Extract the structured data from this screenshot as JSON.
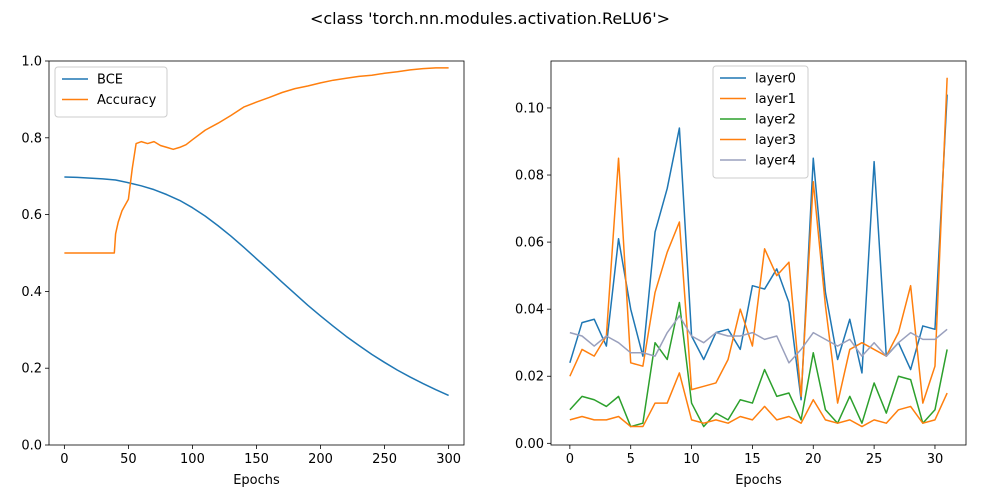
{
  "figure": {
    "title": "<class 'torch.nn.modules.activation.ReLU6'>"
  },
  "chart_data": [
    {
      "type": "line",
      "title": "",
      "xlabel": "Epochs",
      "ylabel": "",
      "xlim": [
        -12,
        312
      ],
      "ylim": [
        0.0,
        1.0
      ],
      "xticks": [
        0,
        50,
        100,
        150,
        200,
        250,
        300
      ],
      "xtick_labels": [
        "0",
        "50",
        "100",
        "150",
        "200",
        "250",
        "300"
      ],
      "yticks": [
        0.0,
        0.2,
        0.4,
        0.6,
        0.8,
        1.0
      ],
      "ytick_labels": [
        "0.0",
        "0.2",
        "0.4",
        "0.6",
        "0.8",
        "1.0"
      ],
      "grid": false,
      "legend": "top-left",
      "series": [
        {
          "name": "BCE",
          "color": "#1f77b4",
          "points": [
            [
              0,
              0.698
            ],
            [
              10,
              0.697
            ],
            [
              20,
              0.695
            ],
            [
              30,
              0.693
            ],
            [
              40,
              0.69
            ],
            [
              50,
              0.683
            ],
            [
              60,
              0.675
            ],
            [
              70,
              0.665
            ],
            [
              80,
              0.652
            ],
            [
              90,
              0.637
            ],
            [
              100,
              0.618
            ],
            [
              110,
              0.596
            ],
            [
              120,
              0.571
            ],
            [
              130,
              0.544
            ],
            [
              140,
              0.515
            ],
            [
              150,
              0.485
            ],
            [
              160,
              0.455
            ],
            [
              170,
              0.424
            ],
            [
              180,
              0.394
            ],
            [
              190,
              0.364
            ],
            [
              200,
              0.336
            ],
            [
              210,
              0.309
            ],
            [
              220,
              0.283
            ],
            [
              230,
              0.259
            ],
            [
              240,
              0.236
            ],
            [
              250,
              0.215
            ],
            [
              260,
              0.195
            ],
            [
              270,
              0.177
            ],
            [
              280,
              0.16
            ],
            [
              290,
              0.144
            ],
            [
              300,
              0.129
            ]
          ]
        },
        {
          "name": "Accuracy",
          "color": "#ff7f0e",
          "points": [
            [
              0,
              0.5
            ],
            [
              39,
              0.5
            ],
            [
              40,
              0.55
            ],
            [
              42,
              0.58
            ],
            [
              45,
              0.61
            ],
            [
              50,
              0.64
            ],
            [
              53,
              0.72
            ],
            [
              56,
              0.785
            ],
            [
              60,
              0.79
            ],
            [
              65,
              0.785
            ],
            [
              70,
              0.79
            ],
            [
              75,
              0.78
            ],
            [
              80,
              0.775
            ],
            [
              85,
              0.77
            ],
            [
              90,
              0.775
            ],
            [
              95,
              0.782
            ],
            [
              100,
              0.795
            ],
            [
              110,
              0.82
            ],
            [
              120,
              0.838
            ],
            [
              130,
              0.858
            ],
            [
              140,
              0.88
            ],
            [
              150,
              0.893
            ],
            [
              160,
              0.905
            ],
            [
              170,
              0.918
            ],
            [
              180,
              0.928
            ],
            [
              190,
              0.935
            ],
            [
              200,
              0.943
            ],
            [
              210,
              0.95
            ],
            [
              220,
              0.955
            ],
            [
              230,
              0.96
            ],
            [
              240,
              0.963
            ],
            [
              250,
              0.968
            ],
            [
              260,
              0.972
            ],
            [
              270,
              0.977
            ],
            [
              280,
              0.98
            ],
            [
              290,
              0.982
            ],
            [
              300,
              0.982
            ]
          ]
        }
      ]
    },
    {
      "type": "line",
      "title": "",
      "xlabel": "Epochs",
      "ylabel": "",
      "xlim": [
        -1.55,
        32.55
      ],
      "ylim": [
        -0.0005,
        0.114
      ],
      "xticks": [
        0,
        5,
        10,
        15,
        20,
        25,
        30
      ],
      "xtick_labels": [
        "0",
        "5",
        "10",
        "15",
        "20",
        "25",
        "30"
      ],
      "yticks": [
        0.0,
        0.02,
        0.04,
        0.06,
        0.08,
        0.1
      ],
      "ytick_labels": [
        "0.00",
        "0.02",
        "0.04",
        "0.06",
        "0.08",
        "0.10"
      ],
      "grid": false,
      "legend": "top-center",
      "x": [
        0,
        1,
        2,
        3,
        4,
        5,
        6,
        7,
        8,
        9,
        10,
        11,
        12,
        13,
        14,
        15,
        16,
        17,
        18,
        19,
        20,
        21,
        22,
        23,
        24,
        25,
        26,
        27,
        28,
        29,
        30,
        31
      ],
      "series": [
        {
          "name": "layer0",
          "color": "#1f77b4",
          "values": [
            0.024,
            0.036,
            0.037,
            0.029,
            0.061,
            0.04,
            0.026,
            0.063,
            0.076,
            0.094,
            0.032,
            0.025,
            0.033,
            0.034,
            0.028,
            0.047,
            0.046,
            0.052,
            0.042,
            0.013,
            0.085,
            0.045,
            0.025,
            0.037,
            0.021,
            0.084,
            0.026,
            0.03,
            0.022,
            0.035,
            0.034,
            0.104
          ]
        },
        {
          "name": "layer1",
          "color": "#ff7f0e",
          "values": [
            0.02,
            0.028,
            0.026,
            0.032,
            0.085,
            0.024,
            0.023,
            0.045,
            0.057,
            0.066,
            0.016,
            0.017,
            0.018,
            0.025,
            0.04,
            0.029,
            0.058,
            0.05,
            0.054,
            0.014,
            0.078,
            0.041,
            0.012,
            0.028,
            0.03,
            0.028,
            0.026,
            0.033,
            0.047,
            0.012,
            0.023,
            0.109
          ]
        },
        {
          "name": "layer2",
          "color": "#2ca02c",
          "values": [
            0.01,
            0.014,
            0.013,
            0.011,
            0.014,
            0.005,
            0.006,
            0.03,
            0.025,
            0.042,
            0.012,
            0.005,
            0.009,
            0.007,
            0.013,
            0.012,
            0.022,
            0.014,
            0.015,
            0.007,
            0.027,
            0.01,
            0.006,
            0.014,
            0.006,
            0.018,
            0.009,
            0.02,
            0.019,
            0.006,
            0.01,
            0.028
          ]
        },
        {
          "name": "layer3",
          "color": "#ff7f0e",
          "values": [
            0.007,
            0.008,
            0.007,
            0.007,
            0.008,
            0.005,
            0.005,
            0.012,
            0.012,
            0.021,
            0.007,
            0.006,
            0.007,
            0.006,
            0.008,
            0.007,
            0.011,
            0.007,
            0.008,
            0.006,
            0.013,
            0.007,
            0.006,
            0.007,
            0.005,
            0.007,
            0.006,
            0.01,
            0.011,
            0.006,
            0.007,
            0.015
          ]
        },
        {
          "name": "layer4",
          "color": "#9aa0bd",
          "values": [
            0.033,
            0.032,
            0.029,
            0.032,
            0.03,
            0.027,
            0.027,
            0.026,
            0.033,
            0.038,
            0.032,
            0.03,
            0.033,
            0.032,
            0.032,
            0.033,
            0.031,
            0.032,
            0.024,
            0.028,
            0.033,
            0.031,
            0.029,
            0.031,
            0.026,
            0.03,
            0.026,
            0.03,
            0.033,
            0.031,
            0.031,
            0.034
          ]
        }
      ]
    }
  ]
}
